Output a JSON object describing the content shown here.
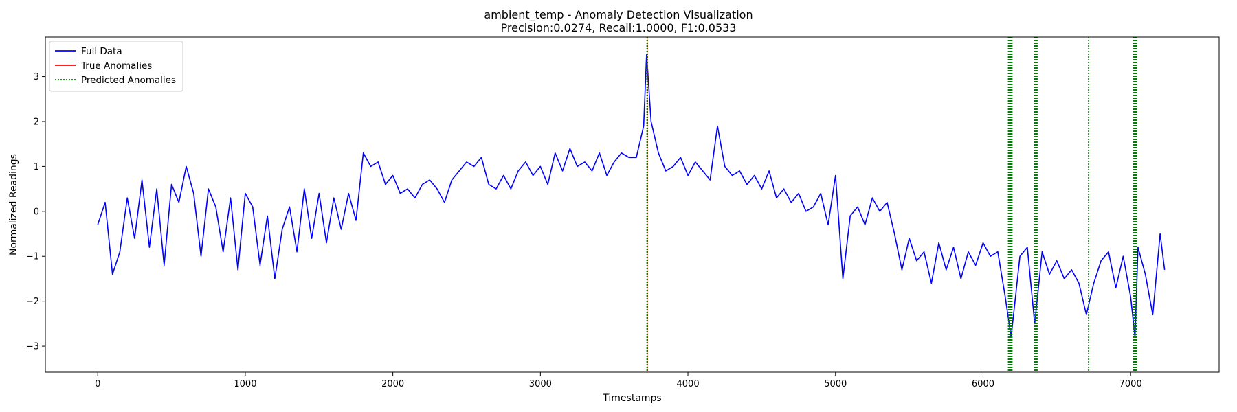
{
  "chart_data": {
    "type": "line",
    "title": "ambient_temp - Anomaly Detection Visualization",
    "subtitle": "Precision:0.0274, Recall:1.0000, F1:0.0533",
    "xlabel": "Timestamps",
    "ylabel": "Normalized Readings",
    "xlim": [
      -355,
      7600
    ],
    "ylim": [
      -3.58,
      3.88
    ],
    "x_ticks": [
      0,
      1000,
      2000,
      3000,
      4000,
      5000,
      6000,
      7000
    ],
    "y_ticks": [
      -3,
      -2,
      -1,
      0,
      1,
      2,
      3
    ],
    "grid": false,
    "legend_position": "top-left",
    "legend": [
      {
        "label": "Full Data",
        "color": "#0000ff",
        "style": "solid"
      },
      {
        "label": "True Anomalies",
        "color": "#ff0000",
        "style": "solid"
      },
      {
        "label": "Predicted Anomalies",
        "color": "#008000",
        "style": "dotted"
      }
    ],
    "series": [
      {
        "name": "Full Data",
        "color": "#0000ff",
        "x": [
          0,
          50,
          100,
          150,
          200,
          250,
          300,
          350,
          400,
          450,
          500,
          550,
          600,
          650,
          700,
          750,
          800,
          850,
          900,
          950,
          1000,
          1050,
          1100,
          1150,
          1200,
          1250,
          1300,
          1350,
          1400,
          1450,
          1500,
          1550,
          1600,
          1650,
          1700,
          1750,
          1800,
          1850,
          1900,
          1950,
          2000,
          2050,
          2100,
          2150,
          2200,
          2250,
          2300,
          2350,
          2400,
          2450,
          2500,
          2550,
          2600,
          2650,
          2700,
          2750,
          2800,
          2850,
          2900,
          2950,
          3000,
          3050,
          3100,
          3150,
          3200,
          3250,
          3300,
          3350,
          3400,
          3450,
          3500,
          3550,
          3600,
          3650,
          3700,
          3720,
          3750,
          3800,
          3850,
          3900,
          3950,
          4000,
          4050,
          4100,
          4150,
          4200,
          4250,
          4300,
          4350,
          4400,
          4450,
          4500,
          4550,
          4600,
          4650,
          4700,
          4750,
          4800,
          4850,
          4900,
          4950,
          5000,
          5050,
          5100,
          5150,
          5200,
          5250,
          5300,
          5350,
          5400,
          5450,
          5500,
          5550,
          5600,
          5650,
          5700,
          5750,
          5800,
          5850,
          5900,
          5950,
          6000,
          6050,
          6100,
          6150,
          6190,
          6250,
          6300,
          6350,
          6400,
          6450,
          6500,
          6550,
          6600,
          6650,
          6700,
          6750,
          6800,
          6850,
          6900,
          6950,
          7000,
          7030,
          7050,
          7100,
          7150,
          7200,
          7230
        ],
        "y": [
          -0.3,
          0.2,
          -1.4,
          -0.9,
          0.3,
          -0.6,
          0.7,
          -0.8,
          0.5,
          -1.2,
          0.6,
          0.2,
          1.0,
          0.4,
          -1.0,
          0.5,
          0.1,
          -0.9,
          0.3,
          -1.3,
          0.4,
          0.1,
          -1.2,
          -0.1,
          -1.5,
          -0.4,
          0.1,
          -0.9,
          0.5,
          -0.6,
          0.4,
          -0.7,
          0.3,
          -0.4,
          0.4,
          -0.2,
          1.3,
          1.0,
          1.1,
          0.6,
          0.8,
          0.4,
          0.5,
          0.3,
          0.6,
          0.7,
          0.5,
          0.2,
          0.7,
          0.9,
          1.1,
          1.0,
          1.2,
          0.6,
          0.5,
          0.8,
          0.5,
          0.9,
          1.1,
          0.8,
          1.0,
          0.6,
          1.3,
          0.9,
          1.4,
          1.0,
          1.1,
          0.9,
          1.3,
          0.8,
          1.1,
          1.3,
          1.2,
          1.2,
          1.9,
          3.5,
          2.0,
          1.3,
          0.9,
          1.0,
          1.2,
          0.8,
          1.1,
          0.9,
          0.7,
          1.9,
          1.0,
          0.8,
          0.9,
          0.6,
          0.8,
          0.5,
          0.9,
          0.3,
          0.5,
          0.2,
          0.4,
          0.0,
          0.1,
          0.4,
          -0.3,
          0.8,
          -1.5,
          -0.1,
          0.1,
          -0.3,
          0.3,
          0.0,
          0.2,
          -0.5,
          -1.3,
          -0.6,
          -1.1,
          -0.9,
          -1.6,
          -0.7,
          -1.3,
          -0.8,
          -1.5,
          -0.9,
          -1.2,
          -0.7,
          -1.0,
          -0.9,
          -1.9,
          -2.8,
          -1.0,
          -0.8,
          -2.5,
          -0.9,
          -1.4,
          -1.1,
          -1.5,
          -1.3,
          -1.6,
          -2.3,
          -1.6,
          -1.1,
          -0.9,
          -1.7,
          -1.0,
          -1.9,
          -2.8,
          -0.8,
          -1.4,
          -2.3,
          -0.5,
          -1.3
        ]
      }
    ],
    "true_anomalies": [
      3724
    ],
    "predicted_anomalies": [
      3722,
      3726,
      6172,
      6176,
      6180,
      6184,
      6188,
      6192,
      6196,
      6350,
      6354,
      6358,
      6362,
      6366,
      6715,
      7020,
      7024,
      7028,
      7032,
      7036,
      7040
    ]
  }
}
